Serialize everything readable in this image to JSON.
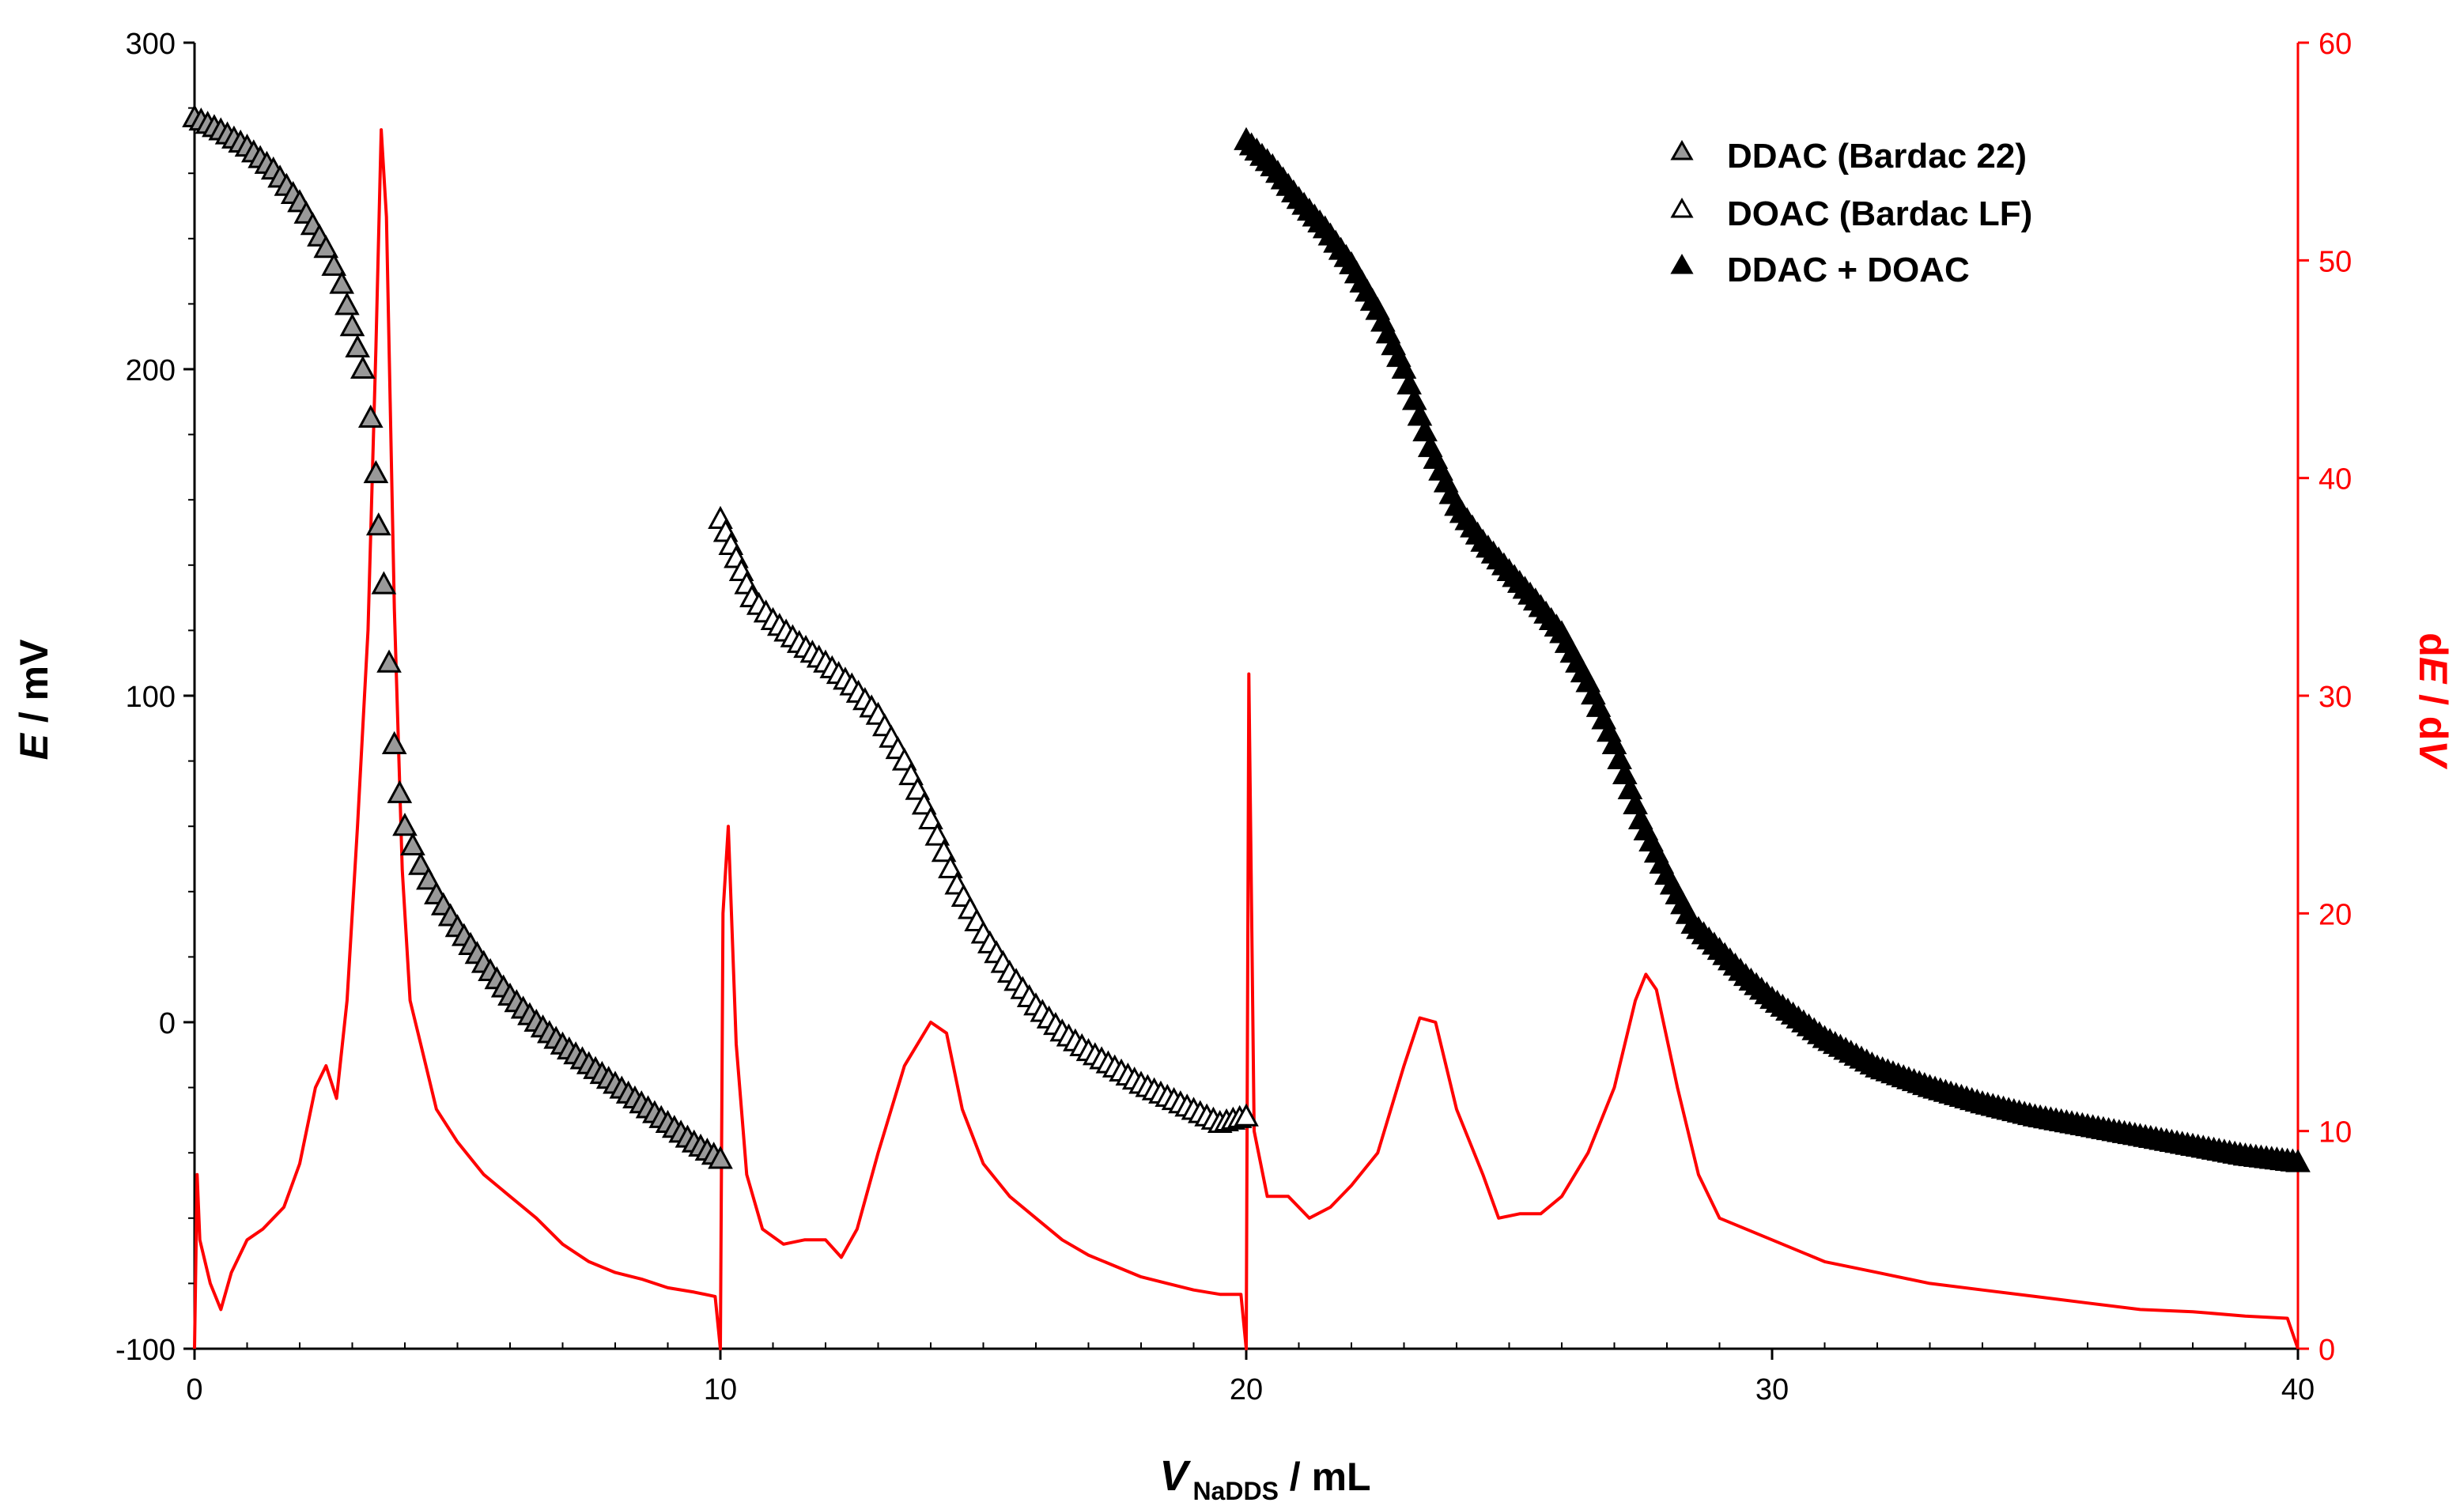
{
  "chart_data": {
    "type": "scatter",
    "title": "",
    "xlabel": {
      "main": "V",
      "sub": "NaDDS",
      "unit": " / mL"
    },
    "ylabel": {
      "main": "E",
      "unit": " / mV"
    },
    "y2label": {
      "prefix": "d",
      "main": "E",
      "mid": " / d",
      "last": "V"
    },
    "xlim": [
      0,
      40
    ],
    "ylim": [
      -100,
      300
    ],
    "y2lim": [
      0,
      60
    ],
    "xticks": [
      0,
      10,
      20,
      30,
      40
    ],
    "yticks": [
      -100,
      0,
      100,
      200,
      300
    ],
    "y2ticks": [
      0,
      10,
      20,
      30,
      40,
      50,
      60
    ],
    "legend_position": "top-right",
    "colors": {
      "derivative": "#ff0000",
      "gray_marker": "#999999",
      "black": "#000000",
      "white": "#ffffff"
    },
    "series": [
      {
        "name": "DDAC (Bardac 22)",
        "marker": "triangle-gray",
        "axis": "left",
        "points": [
          [
            0,
            277
          ],
          [
            0.5,
            273
          ],
          [
            1,
            268
          ],
          [
            1.5,
            261
          ],
          [
            2,
            251
          ],
          [
            2.5,
            237
          ],
          [
            2.8,
            226
          ],
          [
            3.0,
            213
          ],
          [
            3.2,
            200
          ],
          [
            3.35,
            185
          ],
          [
            3.45,
            168
          ],
          [
            3.5,
            152
          ],
          [
            3.6,
            134
          ],
          [
            3.7,
            110
          ],
          [
            3.8,
            85
          ],
          [
            3.9,
            70
          ],
          [
            4.0,
            60
          ],
          [
            4.3,
            48
          ],
          [
            4.6,
            39
          ],
          [
            5,
            29
          ],
          [
            5.5,
            18
          ],
          [
            6,
            8
          ],
          [
            6.5,
            0
          ],
          [
            7,
            -7
          ],
          [
            7.5,
            -13
          ],
          [
            8,
            -19
          ],
          [
            8.5,
            -25
          ],
          [
            9,
            -31
          ],
          [
            9.5,
            -37
          ],
          [
            10,
            -42
          ]
        ]
      },
      {
        "name": "DOAC (Bardac LF)",
        "marker": "triangle-open",
        "axis": "left",
        "points": [
          [
            10,
            154
          ],
          [
            10.2,
            146
          ],
          [
            10.4,
            138
          ],
          [
            10.6,
            130
          ],
          [
            11,
            123
          ],
          [
            11.5,
            116
          ],
          [
            12,
            110
          ],
          [
            12.5,
            103
          ],
          [
            13,
            94
          ],
          [
            13.5,
            80
          ],
          [
            14,
            62
          ],
          [
            14.5,
            42
          ],
          [
            15,
            27
          ],
          [
            15.5,
            15
          ],
          [
            16,
            5
          ],
          [
            16.5,
            -3
          ],
          [
            17,
            -9
          ],
          [
            17.5,
            -14
          ],
          [
            18,
            -19
          ],
          [
            18.5,
            -23
          ],
          [
            19,
            -27
          ],
          [
            19.5,
            -31
          ],
          [
            20,
            -29
          ]
        ]
      },
      {
        "name": "DDAC + DOAC",
        "marker": "triangle-filled",
        "axis": "left",
        "points": [
          [
            20,
            270
          ],
          [
            20.5,
            262
          ],
          [
            21,
            252
          ],
          [
            21.5,
            243
          ],
          [
            22,
            232
          ],
          [
            22.5,
            218
          ],
          [
            23,
            200
          ],
          [
            23.5,
            176
          ],
          [
            24,
            158
          ],
          [
            24.5,
            147
          ],
          [
            25,
            138
          ],
          [
            25.5,
            129
          ],
          [
            26,
            119
          ],
          [
            26.5,
            104
          ],
          [
            27,
            85
          ],
          [
            27.5,
            62
          ],
          [
            28,
            45
          ],
          [
            28.5,
            30
          ],
          [
            29,
            22
          ],
          [
            29.5,
            14
          ],
          [
            30,
            7
          ],
          [
            31,
            -5
          ],
          [
            32,
            -14
          ],
          [
            33,
            -20
          ],
          [
            34,
            -25
          ],
          [
            35,
            -29
          ],
          [
            36,
            -32
          ],
          [
            37,
            -35
          ],
          [
            38,
            -38
          ],
          [
            39,
            -41
          ],
          [
            40,
            -43
          ]
        ]
      },
      {
        "name": "dE/dV",
        "marker": "line",
        "axis": "right",
        "points": [
          [
            0,
            0
          ],
          [
            0.05,
            8
          ],
          [
            0.1,
            5
          ],
          [
            0.3,
            3
          ],
          [
            0.5,
            1.8
          ],
          [
            0.7,
            3.5
          ],
          [
            1,
            5
          ],
          [
            1.3,
            5.5
          ],
          [
            1.7,
            6.5
          ],
          [
            2,
            8.5
          ],
          [
            2.3,
            12
          ],
          [
            2.5,
            13
          ],
          [
            2.7,
            11.5
          ],
          [
            2.9,
            16
          ],
          [
            3.1,
            24
          ],
          [
            3.3,
            33
          ],
          [
            3.45,
            46
          ],
          [
            3.55,
            56
          ],
          [
            3.65,
            52
          ],
          [
            3.8,
            34
          ],
          [
            3.95,
            22
          ],
          [
            4.1,
            16
          ],
          [
            4.3,
            14
          ],
          [
            4.6,
            11
          ],
          [
            5,
            9.5
          ],
          [
            5.5,
            8
          ],
          [
            6,
            7
          ],
          [
            6.5,
            6
          ],
          [
            7,
            4.8
          ],
          [
            7.5,
            4
          ],
          [
            8,
            3.5
          ],
          [
            8.5,
            3.2
          ],
          [
            9,
            2.8
          ],
          [
            9.5,
            2.6
          ],
          [
            9.9,
            2.4
          ],
          [
            10,
            0
          ],
          [
            10.05,
            20
          ],
          [
            10.15,
            24
          ],
          [
            10.3,
            14
          ],
          [
            10.5,
            8
          ],
          [
            10.8,
            5.5
          ],
          [
            11.2,
            4.8
          ],
          [
            11.6,
            5
          ],
          [
            12,
            5
          ],
          [
            12.3,
            4.2
          ],
          [
            12.6,
            5.5
          ],
          [
            13,
            9
          ],
          [
            13.5,
            13
          ],
          [
            14,
            15
          ],
          [
            14.3,
            14.5
          ],
          [
            14.6,
            11
          ],
          [
            15,
            8.5
          ],
          [
            15.5,
            7
          ],
          [
            16,
            6
          ],
          [
            16.5,
            5
          ],
          [
            17,
            4.3
          ],
          [
            17.5,
            3.8
          ],
          [
            18,
            3.3
          ],
          [
            18.5,
            3
          ],
          [
            19,
            2.7
          ],
          [
            19.5,
            2.5
          ],
          [
            19.9,
            2.5
          ],
          [
            20,
            0
          ],
          [
            20.05,
            31
          ],
          [
            20.15,
            10
          ],
          [
            20.4,
            7
          ],
          [
            20.8,
            7
          ],
          [
            21.2,
            6
          ],
          [
            21.6,
            6.5
          ],
          [
            22,
            7.5
          ],
          [
            22.5,
            9
          ],
          [
            23,
            13
          ],
          [
            23.3,
            15.2
          ],
          [
            23.6,
            15
          ],
          [
            24,
            11
          ],
          [
            24.5,
            8
          ],
          [
            24.8,
            6
          ],
          [
            25.2,
            6.2
          ],
          [
            25.6,
            6.2
          ],
          [
            26,
            7
          ],
          [
            26.5,
            9
          ],
          [
            27,
            12
          ],
          [
            27.4,
            16
          ],
          [
            27.6,
            17.2
          ],
          [
            27.8,
            16.5
          ],
          [
            28.2,
            12
          ],
          [
            28.6,
            8
          ],
          [
            29,
            6
          ],
          [
            30,
            5
          ],
          [
            31,
            4
          ],
          [
            32,
            3.5
          ],
          [
            33,
            3
          ],
          [
            34,
            2.7
          ],
          [
            35,
            2.4
          ],
          [
            36,
            2.1
          ],
          [
            37,
            1.8
          ],
          [
            38,
            1.7
          ],
          [
            39,
            1.5
          ],
          [
            39.8,
            1.4
          ],
          [
            40,
            0
          ]
        ]
      }
    ]
  }
}
